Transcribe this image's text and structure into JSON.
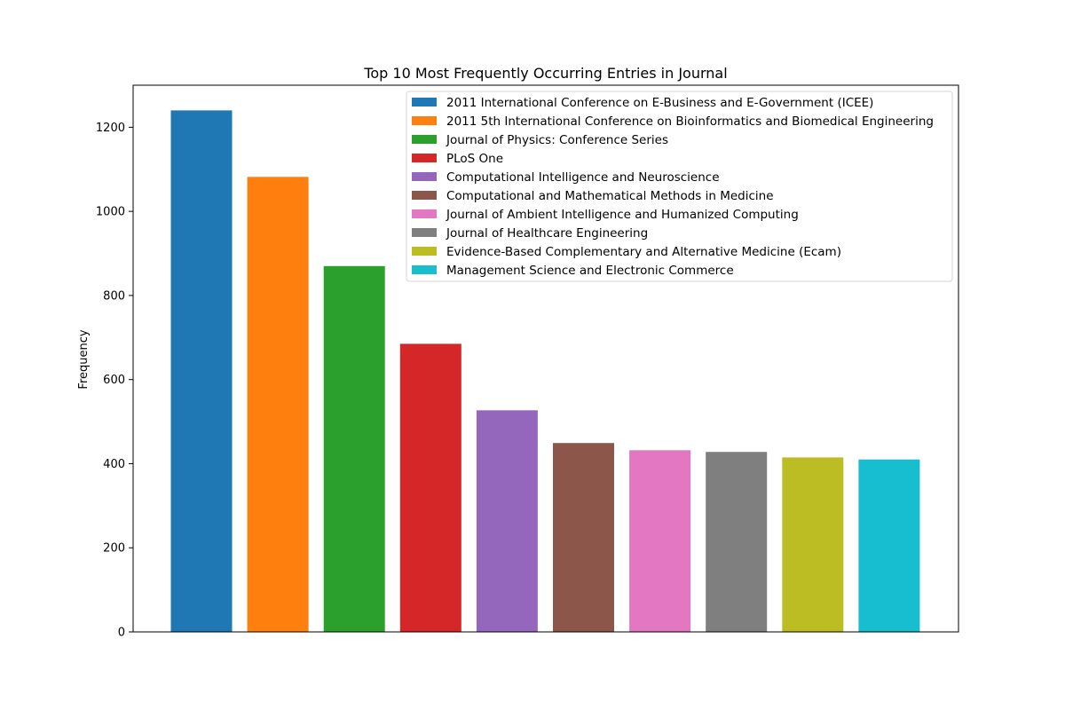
{
  "chart_data": {
    "type": "bar",
    "title": "Top 10 Most Frequently Occurring Entries in Journal",
    "xlabel": "",
    "ylabel": "Frequency",
    "ylim": [
      0,
      1300
    ],
    "yticks": [
      0,
      200,
      400,
      600,
      800,
      1000,
      1200
    ],
    "grid": false,
    "legend_placement": "top-right",
    "categories": [
      "2011 International Conference on E-Business and E-Government (ICEE)",
      "2011 5th International Conference on Bioinformatics and Biomedical Engineering",
      "Journal of Physics: Conference Series",
      "PLoS One",
      "Computational Intelligence and Neuroscience",
      "Computational and Mathematical Methods in Medicine",
      "Journal of Ambient Intelligence and Humanized Computing",
      "Journal of Healthcare Engineering",
      "Evidence-Based Complementary and Alternative Medicine (Ecam)",
      "Management Science and Electronic Commerce"
    ],
    "values": [
      1240,
      1082,
      870,
      685,
      527,
      449,
      432,
      428,
      415,
      410
    ],
    "colors": [
      "#1f77b4",
      "#ff7f0e",
      "#2ca02c",
      "#d62728",
      "#9467bd",
      "#8c564b",
      "#e377c2",
      "#7f7f7f",
      "#bcbd22",
      "#17becf"
    ]
  }
}
